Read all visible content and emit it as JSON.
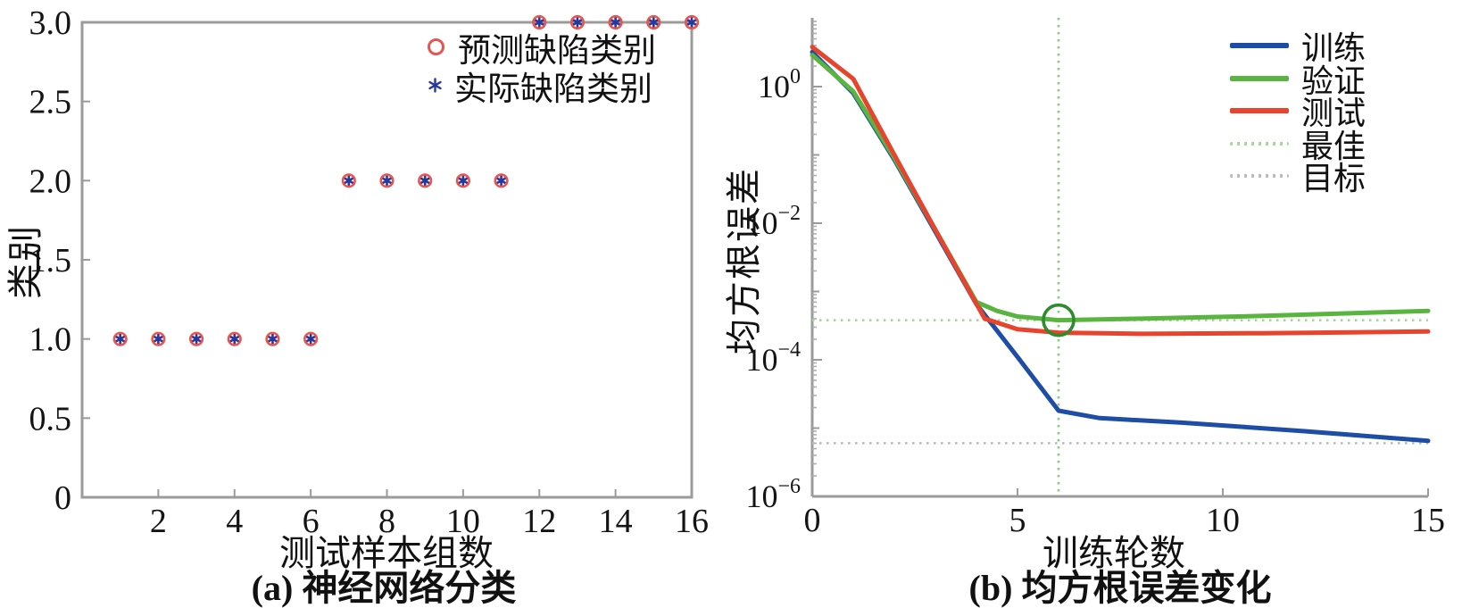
{
  "figure": {
    "background": "#ffffff",
    "axis_color": "#9b9b9b",
    "tick_label_color": "#141414"
  },
  "chart_data": [
    {
      "id": "a",
      "type": "scatter",
      "caption": "(a) 神经网络分类",
      "xlabel": "测试样本组数",
      "ylabel": "类别",
      "xlim": [
        0,
        16
      ],
      "ylim": [
        0,
        3
      ],
      "xticks": [
        2,
        4,
        6,
        8,
        10,
        12,
        14,
        16
      ],
      "ytick_values": [
        0,
        0.5,
        1.0,
        1.5,
        2.0,
        2.5,
        3.0
      ],
      "ytick_labels": [
        "0",
        "0.5",
        "1.0",
        "1.5",
        "2.0",
        "2.5",
        "3.0"
      ],
      "grid": false,
      "legend_position": "top-right-inside",
      "x": [
        1,
        2,
        3,
        4,
        5,
        6,
        7,
        8,
        9,
        10,
        11,
        12,
        13,
        14,
        15,
        16
      ],
      "series": [
        {
          "name": "预测缺陷类别",
          "marker": "circle",
          "color": "#e8544e",
          "values": [
            1,
            1,
            1,
            1,
            1,
            1,
            2,
            2,
            2,
            2,
            2,
            3,
            3,
            3,
            3,
            3
          ]
        },
        {
          "name": "实际缺陷类别",
          "marker": "asterisk",
          "color": "#27389d",
          "values": [
            1,
            1,
            1,
            1,
            1,
            1,
            2,
            2,
            2,
            2,
            2,
            3,
            3,
            3,
            3,
            3
          ]
        }
      ]
    },
    {
      "id": "b",
      "type": "line",
      "caption": "(b) 均方根误差变化",
      "xlabel": "训练轮数",
      "ylabel": "均方根误差",
      "xlim": [
        0,
        15
      ],
      "y_scale": "log",
      "ylim": [
        1e-06,
        10
      ],
      "xticks": [
        0,
        5,
        10,
        15
      ],
      "ytick_exponents": [
        0,
        -2,
        -4,
        -6
      ],
      "grid": false,
      "legend_position": "top-right-inside",
      "series": [
        {
          "name": "训练",
          "color": "#1e4da6",
          "style": "solid",
          "points": [
            [
              0,
              3.2
            ],
            [
              1,
              0.8
            ],
            [
              2,
              0.085
            ],
            [
              3,
              0.0075
            ],
            [
              4,
              0.00065
            ],
            [
              5,
              0.00011
            ],
            [
              6,
              1.8e-05
            ],
            [
              7,
              1.4e-05
            ],
            [
              9,
              1.2e-05
            ],
            [
              12,
              9e-06
            ],
            [
              15,
              6.5e-06
            ]
          ]
        },
        {
          "name": "验证",
          "color": "#5ab440",
          "style": "solid",
          "points": [
            [
              0,
              2.9
            ],
            [
              1,
              0.85
            ],
            [
              2,
              0.09
            ],
            [
              3,
              0.008
            ],
            [
              4,
              0.0007
            ],
            [
              4.5,
              0.00052
            ],
            [
              5,
              0.00043
            ],
            [
              6,
              0.00038
            ],
            [
              8,
              0.0004
            ],
            [
              11,
              0.00044
            ],
            [
              15,
              0.00052
            ]
          ]
        },
        {
          "name": "测试",
          "color": "#e8432c",
          "style": "solid",
          "points": [
            [
              0,
              3.8
            ],
            [
              1,
              1.3
            ],
            [
              2,
              0.1
            ],
            [
              3,
              0.008
            ],
            [
              4.2,
              0.0004
            ],
            [
              5,
              0.00028
            ],
            [
              6,
              0.00025
            ],
            [
              8,
              0.00024
            ],
            [
              11,
              0.000245
            ],
            [
              15,
              0.00026
            ]
          ]
        },
        {
          "name": "最佳",
          "color": "#a6d79b",
          "style": "dotted",
          "kind": "hline",
          "value": 0.00038
        },
        {
          "name": "目标",
          "color": "#b7bdbf",
          "style": "dotted",
          "kind": "hline",
          "value": 6e-06
        }
      ],
      "best_epoch_line": {
        "x": 6,
        "color": "#8cc87e",
        "style": "dotted"
      },
      "annotation_circle": {
        "x": 6,
        "y": 0.00038,
        "color": "#2e8b2e"
      }
    }
  ]
}
